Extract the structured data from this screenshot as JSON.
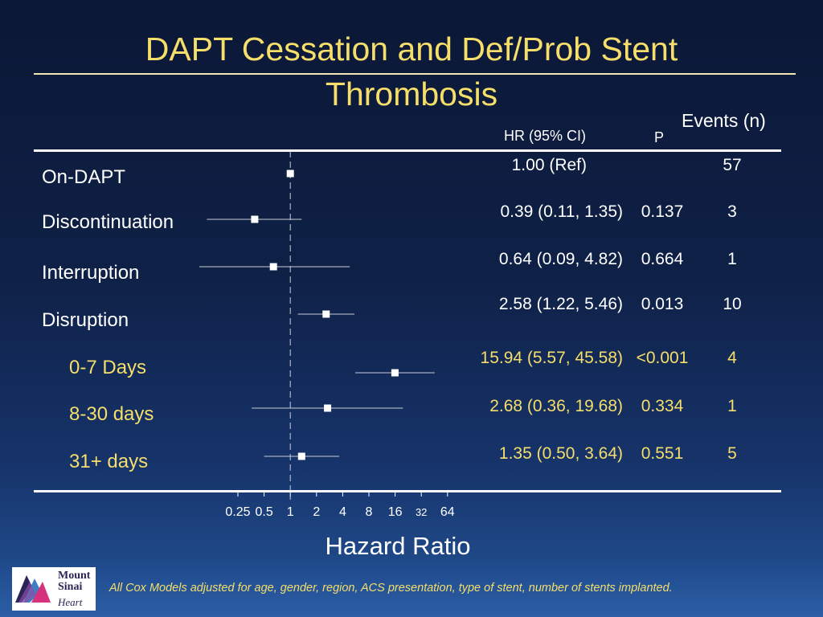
{
  "slide": {
    "title_line1": "DAPT Cessation and Def/Prob Stent",
    "title_line2": "Thrombosis",
    "header_hr": "HR (95% CI)",
    "header_p": "P",
    "header_events": "Events (n)",
    "x_axis_title": "Hazard Ratio",
    "footnote": "All Cox Models adjusted for age, gender, region, ACS presentation, type of stent, number of stents implanted.",
    "logo": {
      "line1": "Mount",
      "line2": "Sinai",
      "line3": "Heart"
    }
  },
  "rows": [
    {
      "label": "On-DAPT",
      "hr_text": "1.00 (Ref)",
      "p": "",
      "events": "57",
      "subgroup": false
    },
    {
      "label": "Discontinuation",
      "hr_text": "0.39 (0.11, 1.35)",
      "p": "0.137",
      "events": "3",
      "subgroup": false
    },
    {
      "label": "Interruption",
      "hr_text": "0.64 (0.09, 4.82)",
      "p": "0.664",
      "events": "1",
      "subgroup": false
    },
    {
      "label": "Disruption",
      "hr_text": "2.58 (1.22, 5.46)",
      "p": "0.013",
      "events": "10",
      "subgroup": false
    },
    {
      "label": "0-7 Days",
      "hr_text": "15.94 (5.57, 45.58)",
      "p": "<0.001",
      "events": "4",
      "subgroup": true
    },
    {
      "label": "8-30 days",
      "hr_text": "2.68 (0.36, 19.68)",
      "p": "0.334",
      "events": "1",
      "subgroup": true
    },
    {
      "label": "31+ days",
      "hr_text": "1.35 (0.50, 3.64)",
      "p": "0.551",
      "events": "5",
      "subgroup": true
    }
  ],
  "chart_data": {
    "type": "forest",
    "title": "DAPT Cessation and Def/Prob Stent Thrombosis",
    "xlabel": "Hazard Ratio",
    "x_scale": "log2",
    "reference_line": 1,
    "x_ticks": [
      "0.25",
      "0.5",
      "1",
      "2",
      "4",
      "8",
      "16",
      "32",
      "64"
    ],
    "x_tick_values": [
      0.25,
      0.5,
      1,
      2,
      4,
      8,
      16,
      32,
      64
    ],
    "points": [
      {
        "label": "On-DAPT",
        "hr": 1.0,
        "lo": null,
        "hi": null
      },
      {
        "label": "Discontinuation",
        "hr": 0.39,
        "lo": 0.11,
        "hi": 1.35
      },
      {
        "label": "Interruption",
        "hr": 0.64,
        "lo": 0.09,
        "hi": 4.82
      },
      {
        "label": "Disruption",
        "hr": 2.58,
        "lo": 1.22,
        "hi": 5.46
      },
      {
        "label": "0-7 Days",
        "hr": 15.94,
        "lo": 5.57,
        "hi": 45.58
      },
      {
        "label": "8-30 days",
        "hr": 2.68,
        "lo": 0.36,
        "hi": 19.68
      },
      {
        "label": "31+ days",
        "hr": 1.35,
        "lo": 0.5,
        "hi": 3.64
      }
    ]
  }
}
